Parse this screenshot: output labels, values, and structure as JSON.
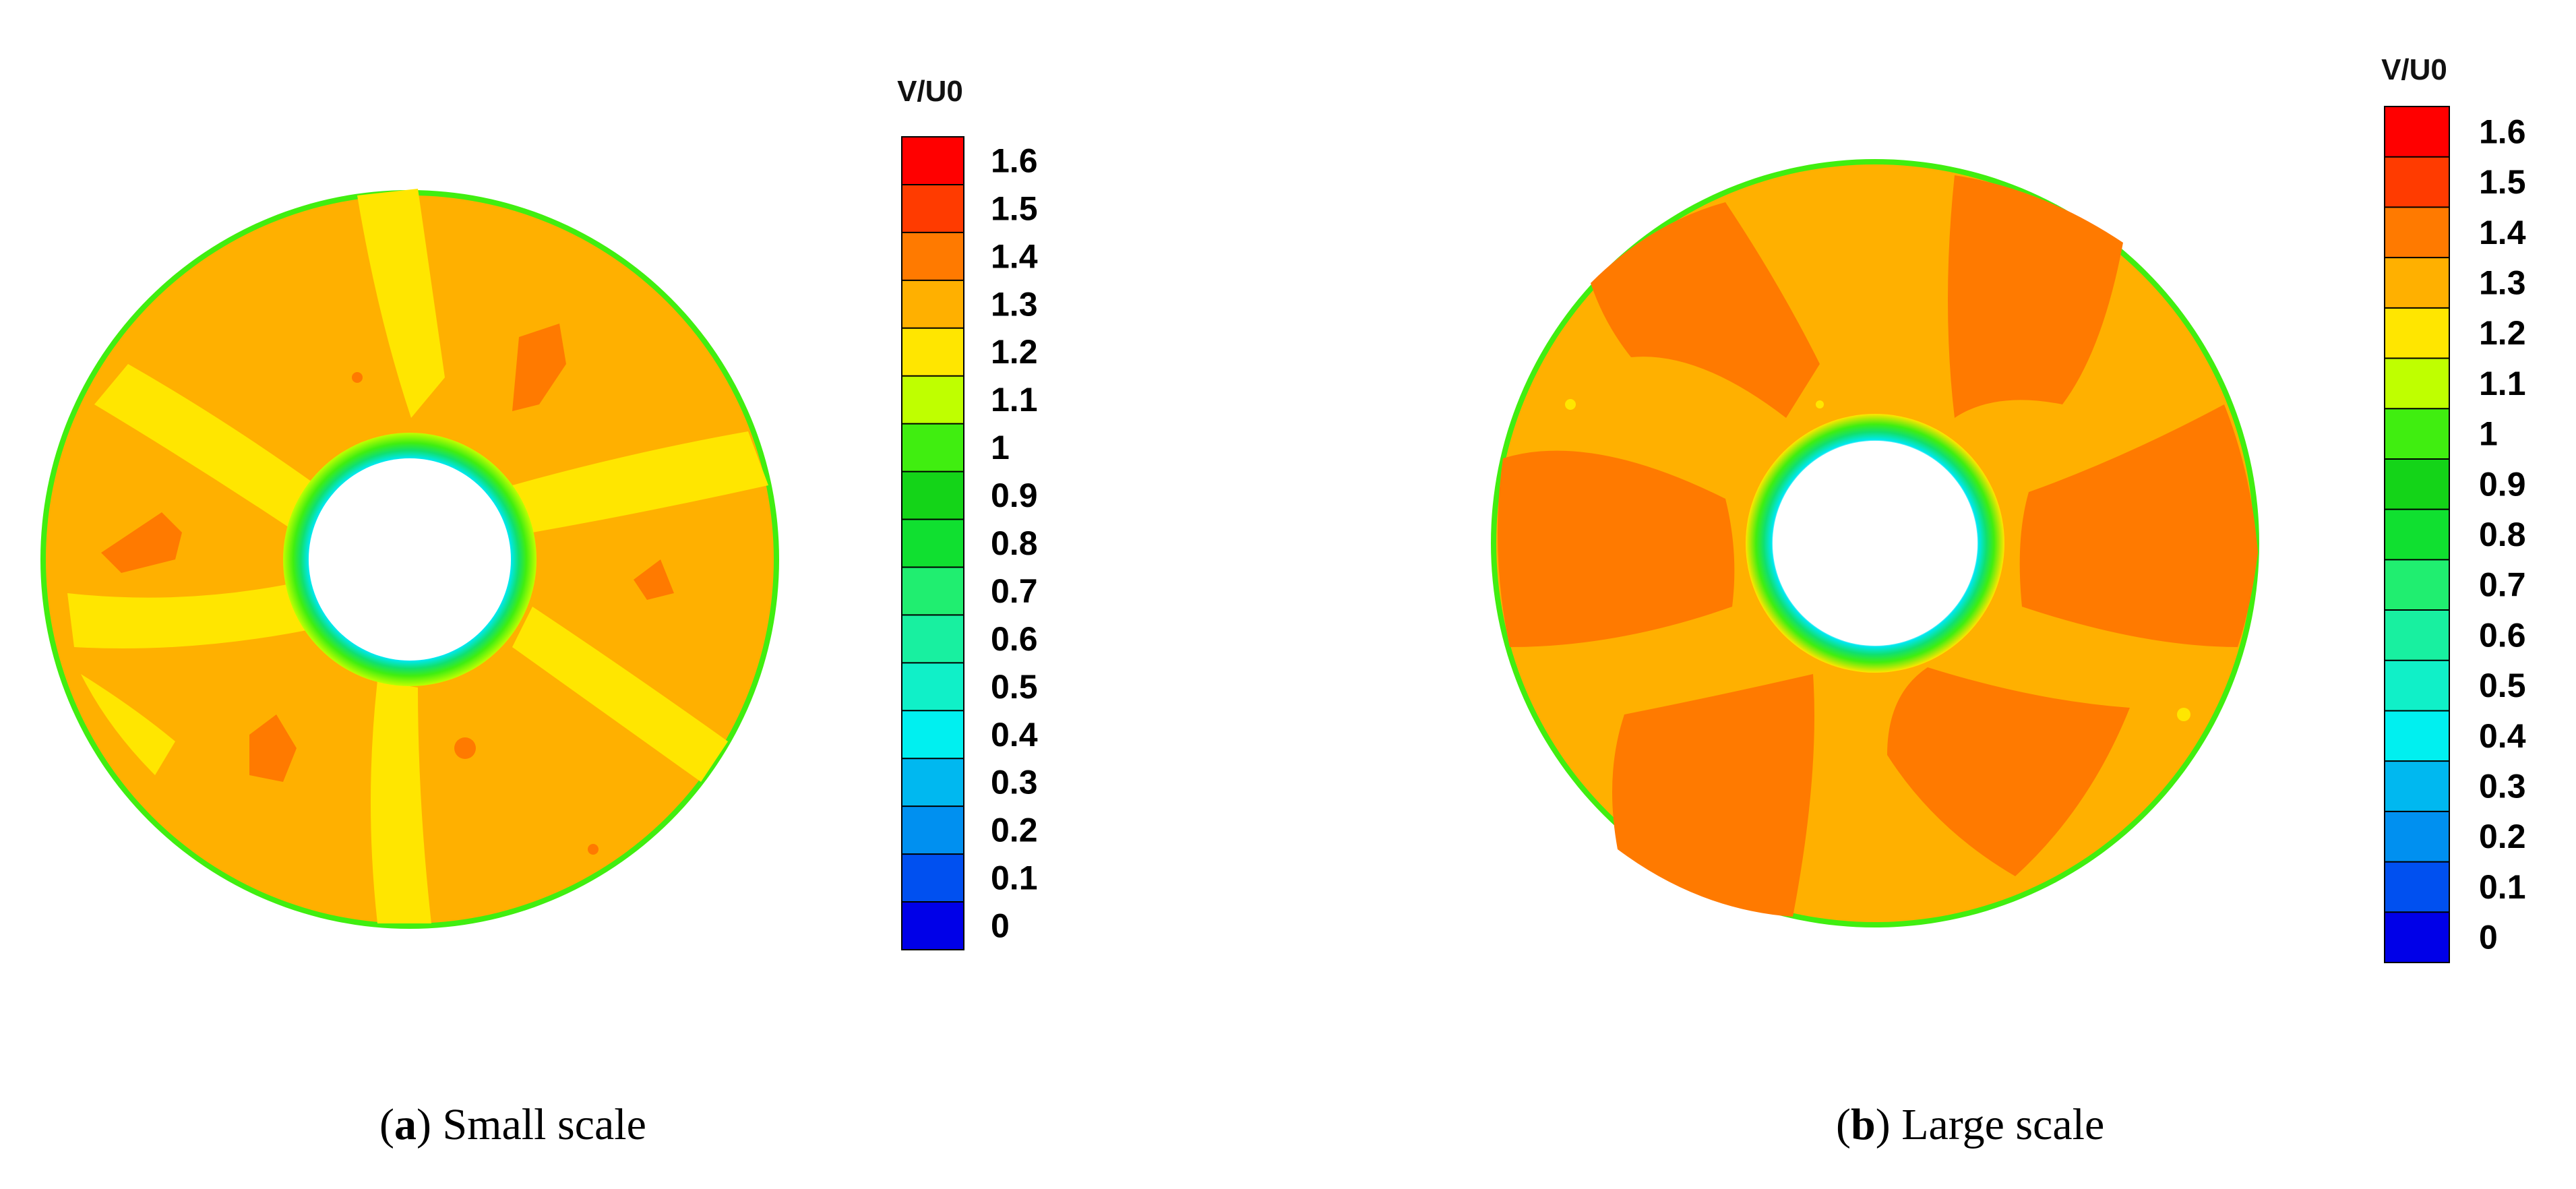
{
  "colorbar": {
    "title": "V/U0",
    "tick_labels": [
      "1.6",
      "1.5",
      "1.4",
      "1.3",
      "1.2",
      "1.1",
      "1",
      "0.9",
      "0.8",
      "0.7",
      "0.6",
      "0.5",
      "0.4",
      "0.3",
      "0.2",
      "0.1",
      "0"
    ],
    "level_colors": [
      "#ff0000",
      "#ff3b00",
      "#ff7a00",
      "#ffb000",
      "#ffe600",
      "#bfff00",
      "#40ee10",
      "#14d418",
      "#10e030",
      "#20ee70",
      "#18f0a0",
      "#10f0c8",
      "#00f0f0",
      "#00b8f0",
      "#0090f0",
      "#0050f0",
      "#0000e8"
    ]
  },
  "panels": [
    {
      "letter": "a",
      "label": "Small scale",
      "colors": {
        "background": "#ffb000",
        "bands": "#ffe600",
        "spots": "#ff7a00",
        "edge": "#40ee10"
      }
    },
    {
      "letter": "b",
      "label": "Large scale",
      "colors": {
        "background": "#ffb000",
        "bands": "#ff7a00",
        "spots": "#ffe600",
        "edge": "#40ee10"
      }
    }
  ]
}
